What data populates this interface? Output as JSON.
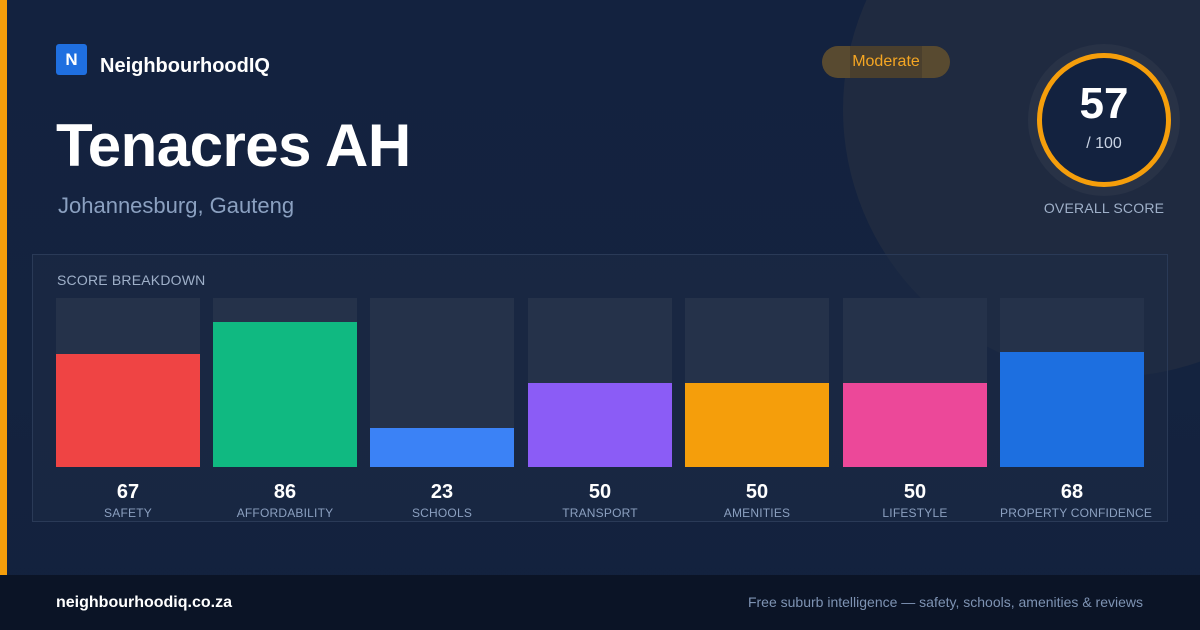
{
  "brand": {
    "logo_letter": "N",
    "name": "NeighbourhoodIQ"
  },
  "suburb": {
    "name": "Tenacres AH",
    "location": "Johannesburg, Gauteng"
  },
  "rating": {
    "badge": "Moderate",
    "score": "57",
    "max": "/ 100",
    "label": "OVERALL SCORE"
  },
  "breakdown": {
    "title": "SCORE BREAKDOWN",
    "items": [
      {
        "value": "67",
        "label": "SAFETY",
        "color": "#ef4444"
      },
      {
        "value": "86",
        "label": "AFFORDABILITY",
        "color": "#10b981"
      },
      {
        "value": "23",
        "label": "SCHOOLS",
        "color": "#3b82f6"
      },
      {
        "value": "50",
        "label": "TRANSPORT",
        "color": "#8b5cf6"
      },
      {
        "value": "50",
        "label": "AMENITIES",
        "color": "#f59e0b"
      },
      {
        "value": "50",
        "label": "LIFESTYLE",
        "color": "#ec4899"
      },
      {
        "value": "68",
        "label": "PROPERTY CONFIDENCE",
        "color": "#1d6fe0"
      }
    ]
  },
  "chart_data": {
    "type": "bar",
    "categories": [
      "SAFETY",
      "AFFORDABILITY",
      "SCHOOLS",
      "TRANSPORT",
      "AMENITIES",
      "LIFESTYLE",
      "PROPERTY CONFIDENCE"
    ],
    "values": [
      67,
      86,
      23,
      50,
      50,
      50,
      68
    ],
    "title": "SCORE BREAKDOWN",
    "ylim": [
      0,
      100
    ]
  },
  "footer": {
    "url": "neighbourhoodiq.co.za",
    "tagline": "Free suburb intelligence — safety, schools, amenities & reviews"
  },
  "colors": {
    "accent": "#f59e0b",
    "brand": "#1f6fe0",
    "background": "#13223f"
  }
}
